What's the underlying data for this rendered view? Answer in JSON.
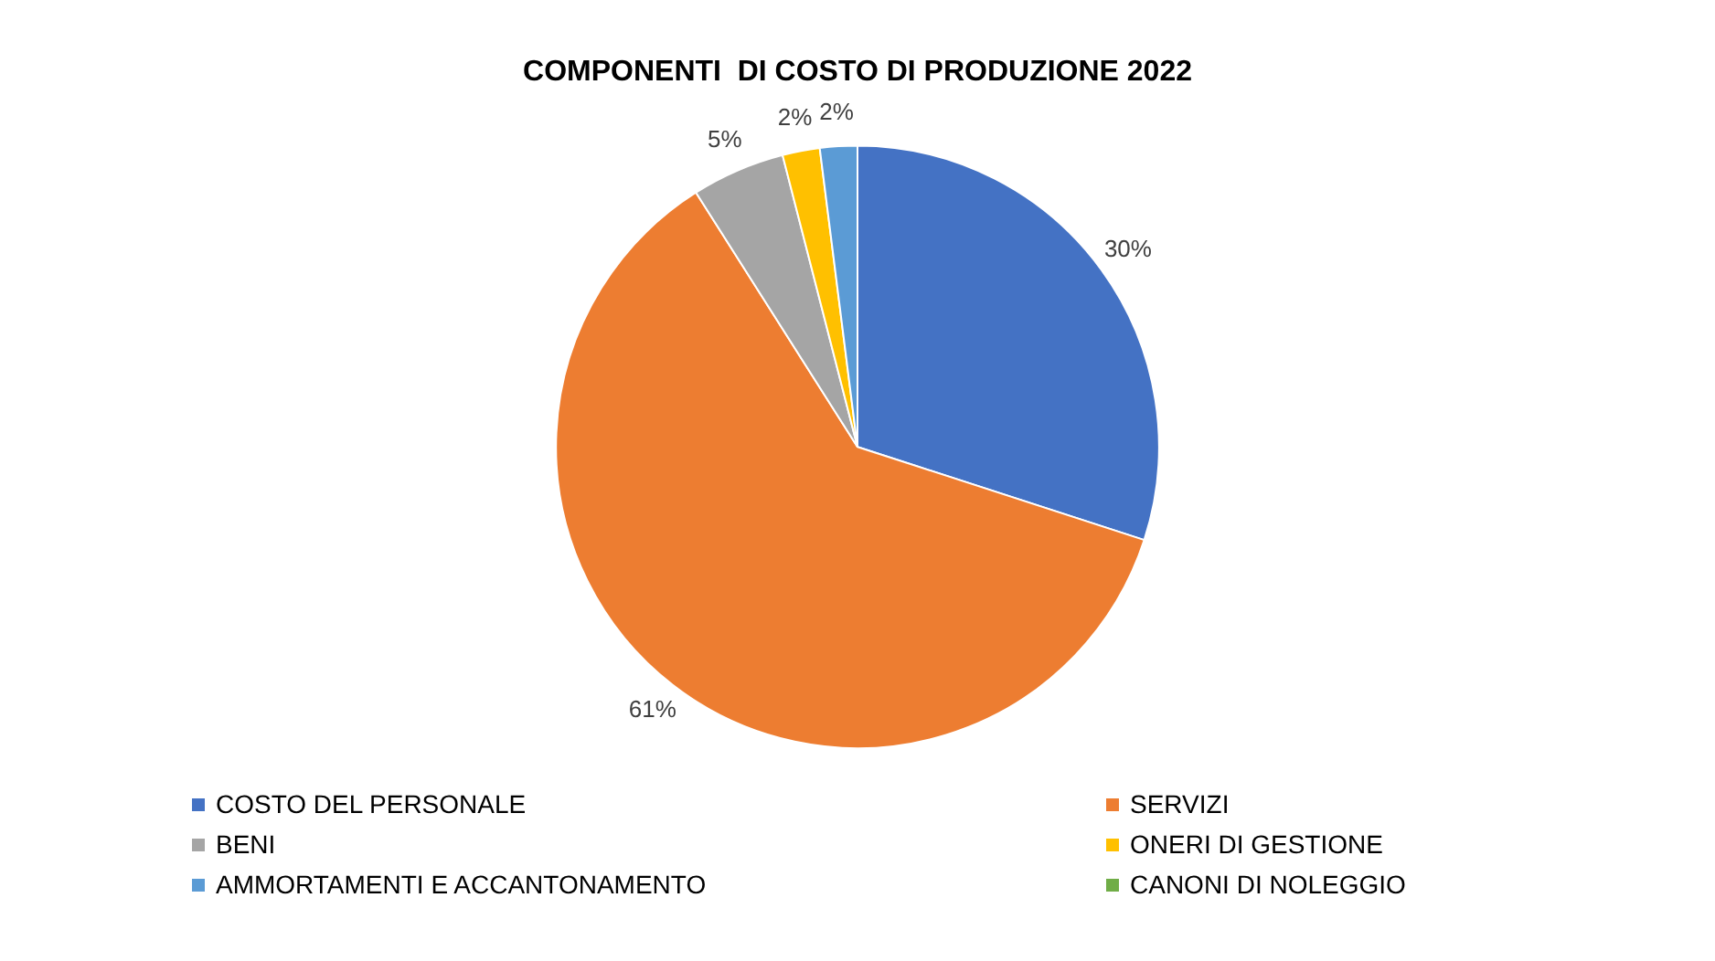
{
  "chart_data": {
    "type": "pie",
    "title": "COMPONENTI  DI COSTO DI PRODUZIONE 2022",
    "categories": [
      "COSTO DEL PERSONALE",
      "SERVIZI",
      "BENI",
      "ONERI DI GESTIONE",
      "AMMORTAMENTI E ACCANTONAMENTO",
      "CANONI DI NOLEGGIO"
    ],
    "values": [
      30,
      61,
      5,
      2,
      2,
      0
    ],
    "value_labels": [
      "30%",
      "61%",
      "5%",
      "2%",
      "2%",
      null
    ],
    "colors": [
      "#4472c4",
      "#ed7d31",
      "#a5a5a5",
      "#ffc000",
      "#5b9bd5",
      "#70ad47"
    ],
    "legend": "bottom"
  }
}
